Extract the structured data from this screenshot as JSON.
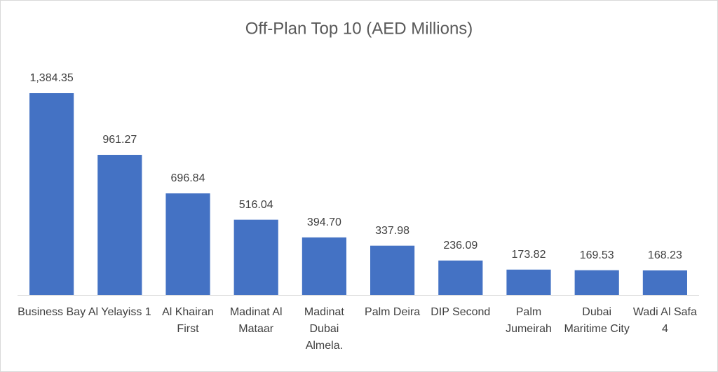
{
  "chart_data": {
    "type": "bar",
    "title": "Off-Plan Top 10 (AED Millions)",
    "categories": [
      "Business Bay",
      "Al Yelayiss 1",
      "Al Khairan First",
      "Madinat Al Mataar",
      "Madinat Dubai Almela.",
      "Palm Deira",
      "DIP Second",
      "Palm Jumeirah",
      "Dubai Maritime City",
      "Wadi Al Safa 4"
    ],
    "values": [
      1384.35,
      961.27,
      696.84,
      516.04,
      394.7,
      337.98,
      236.09,
      173.82,
      169.53,
      168.23
    ],
    "value_labels": [
      "1,384.35",
      "961.27",
      "696.84",
      "516.04",
      "394.70",
      "337.98",
      "236.09",
      "173.82",
      "169.53",
      "168.23"
    ],
    "color": "#4472c4"
  }
}
